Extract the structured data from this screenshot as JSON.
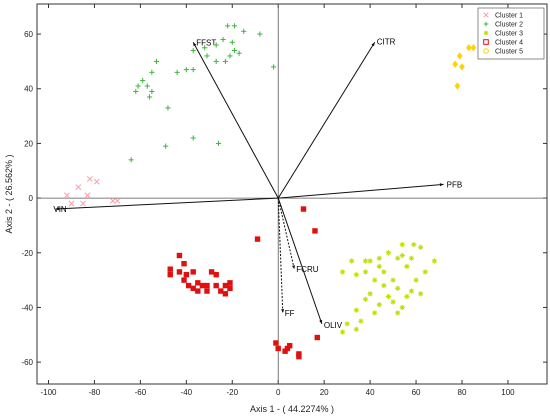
{
  "chart_data": {
    "type": "scatter",
    "title": "",
    "xlabel": "Axis 1 - ( 44.2274% )",
    "ylabel": "Axis 2 - ( 26.562% )",
    "xlim": [
      -105,
      117
    ],
    "ylim": [
      -68,
      71
    ],
    "xticks": [
      -100,
      -80,
      -60,
      -40,
      -20,
      0,
      20,
      40,
      60,
      80,
      100
    ],
    "yticks": [
      -60,
      -40,
      -20,
      0,
      20,
      40,
      60
    ],
    "grid": false,
    "legend_position": "top-right",
    "series": [
      {
        "name": "Cluster 1",
        "marker": "x",
        "color": "#ff9aa8",
        "points": [
          [
            -92,
            1
          ],
          [
            -87,
            4
          ],
          [
            -83,
            1
          ],
          [
            -82,
            7
          ],
          [
            -79,
            6
          ],
          [
            -85,
            -2
          ],
          [
            -90,
            -2
          ],
          [
            -72,
            -1
          ],
          [
            -70,
            -1
          ]
        ]
      },
      {
        "name": "Cluster 2",
        "marker": "+",
        "color": "#3fb43f",
        "points": [
          [
            -22,
            63
          ],
          [
            -19,
            63
          ],
          [
            -15,
            61
          ],
          [
            -8,
            60
          ],
          [
            -24,
            58
          ],
          [
            -20,
            57
          ],
          [
            -27,
            56
          ],
          [
            -32,
            55
          ],
          [
            -37,
            54
          ],
          [
            -19,
            54
          ],
          [
            -17,
            53
          ],
          [
            -31,
            52
          ],
          [
            -21,
            52
          ],
          [
            -27,
            50
          ],
          [
            -23,
            50
          ],
          [
            -53,
            50
          ],
          [
            -55,
            46
          ],
          [
            -40,
            47
          ],
          [
            -37,
            47
          ],
          [
            -44,
            46
          ],
          [
            -59,
            43
          ],
          [
            -61,
            41
          ],
          [
            -57,
            41
          ],
          [
            -55,
            39
          ],
          [
            -62,
            39
          ],
          [
            -56,
            37
          ],
          [
            -48,
            33
          ],
          [
            -2,
            48
          ],
          [
            -64,
            14
          ],
          [
            -49,
            19
          ],
          [
            -37,
            22
          ],
          [
            -26,
            20
          ]
        ]
      },
      {
        "name": "Cluster 3",
        "marker": "*",
        "color": "#bfe000",
        "points": [
          [
            54,
            -17
          ],
          [
            59,
            -17
          ],
          [
            62,
            -18
          ],
          [
            48,
            -20
          ],
          [
            54,
            -21
          ],
          [
            58,
            -22
          ],
          [
            52,
            -22
          ],
          [
            44,
            -22
          ],
          [
            40,
            -23
          ],
          [
            38,
            -23
          ],
          [
            32,
            -23
          ],
          [
            68,
            -23
          ],
          [
            44,
            -25
          ],
          [
            56,
            -25
          ],
          [
            46,
            -27
          ],
          [
            28,
            -27
          ],
          [
            34,
            -28
          ],
          [
            38,
            -27
          ],
          [
            64,
            -27
          ],
          [
            42,
            -30
          ],
          [
            50,
            -30
          ],
          [
            60,
            -30
          ],
          [
            46,
            -32
          ],
          [
            52,
            -33
          ],
          [
            58,
            -34
          ],
          [
            40,
            -35
          ],
          [
            48,
            -36
          ],
          [
            56,
            -36
          ],
          [
            62,
            -35
          ],
          [
            38,
            -37
          ],
          [
            50,
            -38
          ],
          [
            44,
            -39
          ],
          [
            54,
            -40
          ],
          [
            34,
            -41
          ],
          [
            42,
            -42
          ],
          [
            52,
            -42
          ],
          [
            36,
            -45
          ],
          [
            30,
            -46
          ],
          [
            34,
            -48
          ],
          [
            28,
            -49
          ]
        ]
      },
      {
        "name": "Cluster 4",
        "marker": "square",
        "color": "#e01010",
        "points": [
          [
            -47,
            -26
          ],
          [
            -47,
            -28
          ],
          [
            -43,
            -21
          ],
          [
            -43,
            -27
          ],
          [
            -41,
            -24
          ],
          [
            -41,
            -30
          ],
          [
            -40,
            -28
          ],
          [
            -39,
            -32
          ],
          [
            -37,
            -27
          ],
          [
            -37,
            -33
          ],
          [
            -35,
            -31
          ],
          [
            -35,
            -34
          ],
          [
            -33,
            -32
          ],
          [
            -31,
            -32
          ],
          [
            -31,
            -34
          ],
          [
            -29,
            -27
          ],
          [
            -27,
            -28
          ],
          [
            -27,
            -32
          ],
          [
            -25,
            -34
          ],
          [
            -23,
            -32
          ],
          [
            -23,
            -35
          ],
          [
            -21,
            -31
          ],
          [
            -21,
            -33
          ],
          [
            -9,
            -15
          ],
          [
            11,
            -4
          ],
          [
            16,
            -12
          ],
          [
            -1,
            -53
          ],
          [
            0,
            -55
          ],
          [
            3,
            -56
          ],
          [
            4,
            -55
          ],
          [
            5,
            -54
          ],
          [
            9,
            -57
          ],
          [
            9,
            -58
          ],
          [
            17,
            -51
          ]
        ]
      },
      {
        "name": "Cluster 5",
        "marker": "diamond",
        "color": "#ffd200",
        "points": [
          [
            77,
            49
          ],
          [
            79,
            52
          ],
          [
            83,
            55
          ],
          [
            85,
            55
          ],
          [
            90,
            55
          ],
          [
            100,
            54
          ],
          [
            103,
            52
          ],
          [
            78,
            41
          ],
          [
            80,
            48
          ]
        ]
      }
    ],
    "vectors": [
      {
        "label": "FFST",
        "x": -37,
        "y": 57
      },
      {
        "label": "CITR",
        "x": 42,
        "y": 57
      },
      {
        "label": "PFB",
        "x": 72,
        "y": 5
      },
      {
        "label": "VIN",
        "x": -97,
        "y": -4
      },
      {
        "label": "FCRU",
        "x": 7,
        "y": -26
      },
      {
        "label": "FF",
        "x": 2,
        "y": -42
      },
      {
        "label": "OLIV",
        "x": 19,
        "y": -46
      }
    ]
  }
}
